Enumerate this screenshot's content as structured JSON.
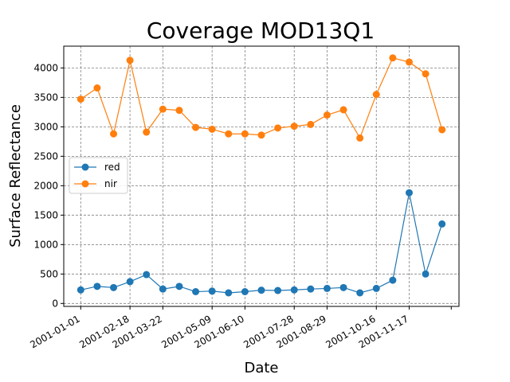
{
  "chart_data": {
    "type": "line",
    "title": "Coverage MOD13Q1",
    "xlabel": "Date",
    "ylabel": "Surface Reflectance",
    "x": [
      "2001-01-01",
      "2001-01-17",
      "2001-02-02",
      "2001-02-18",
      "2001-03-06",
      "2001-03-22",
      "2001-04-07",
      "2001-04-23",
      "2001-05-09",
      "2001-05-25",
      "2001-06-10",
      "2001-06-26",
      "2001-07-12",
      "2001-07-28",
      "2001-08-13",
      "2001-08-29",
      "2001-09-14",
      "2001-09-30",
      "2001-10-16",
      "2001-11-01",
      "2001-11-17",
      "2001-12-03",
      "2001-12-19"
    ],
    "x_tick_labels": [
      "2001-01-01",
      "2001-02-18",
      "2001-03-22",
      "2001-05-09",
      "2001-06-10",
      "2001-07-28",
      "2001-08-29",
      "2001-10-16",
      "2001-11-17"
    ],
    "ylim": [
      -50,
      4370
    ],
    "y_ticks": [
      0,
      500,
      1000,
      1500,
      2000,
      2500,
      3000,
      3500,
      4000
    ],
    "grid": true,
    "legend_position": "center-left",
    "series": [
      {
        "name": "red",
        "color": "#1f77b4",
        "values": [
          230,
          290,
          270,
          370,
          490,
          245,
          290,
          200,
          210,
          180,
          200,
          225,
          220,
          230,
          245,
          255,
          270,
          180,
          255,
          395,
          1880,
          500,
          1350
        ]
      },
      {
        "name": "nir",
        "color": "#ff7f0e",
        "values": [
          3470,
          3660,
          2880,
          4130,
          2910,
          3300,
          3280,
          2990,
          2960,
          2880,
          2880,
          2860,
          2980,
          3010,
          3040,
          3200,
          3290,
          2810,
          3550,
          4170,
          4100,
          3900,
          2950
        ]
      }
    ]
  }
}
